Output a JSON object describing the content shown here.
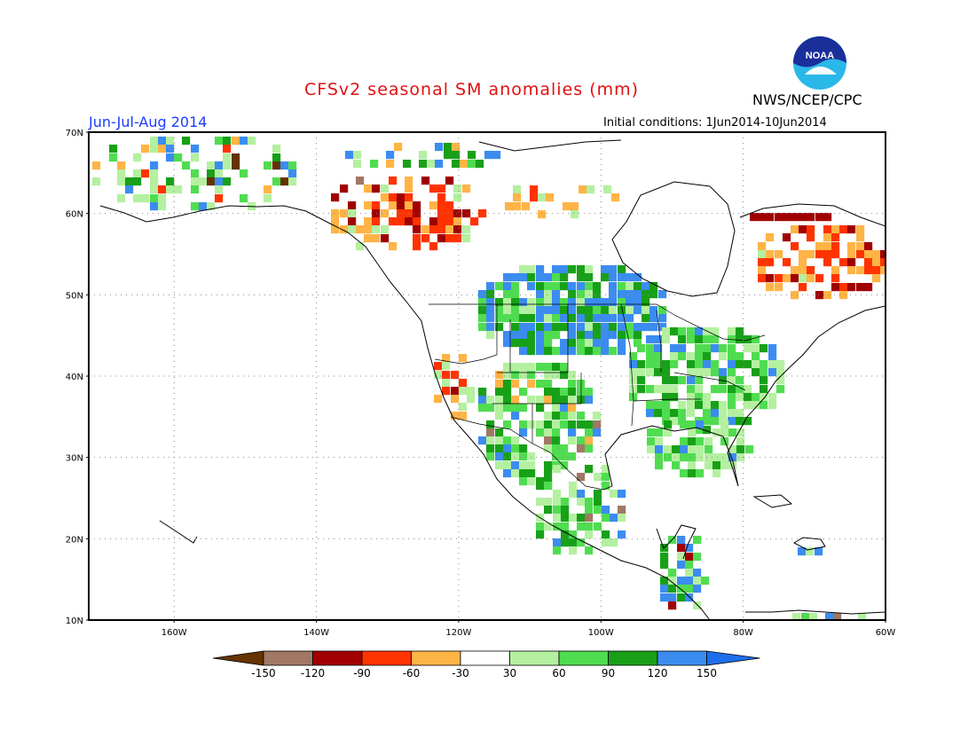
{
  "title": "CFSv2 seasonal SM anomalies (mm)",
  "agency": "NWS/NCEP/CPC",
  "logo_text": "NOAA",
  "season": "Jun-Jul-Aug 2014",
  "initial_conditions": "Initial conditions: 1Jun2014-10Jun2014",
  "map": {
    "lon_range": [
      -172,
      -60
    ],
    "lat_range": [
      10,
      70
    ],
    "lat_labels": [
      "70N",
      "60N",
      "50N",
      "40N",
      "30N",
      "20N",
      "10N"
    ],
    "lon_labels": [
      "160W",
      "140W",
      "120W",
      "100W",
      "80W",
      "60W"
    ],
    "gridlines": true
  },
  "legend": {
    "labels": [
      "-150",
      "-120",
      "-90",
      "-60",
      "-30",
      "30",
      "60",
      "90",
      "120",
      "150"
    ],
    "colors": [
      "#663300",
      "#a07864",
      "#a00000",
      "#ff3300",
      "#ffb446",
      "#ffffff",
      "#b4f0a0",
      "#50dc50",
      "#18a018",
      "#3c8cf0",
      "#1e6eeb"
    ]
  },
  "colors": {
    "title": "#e01010",
    "season": "#1a3cff",
    "logo_blue": "#1a2f9a",
    "logo_cyan": "#2ab8e8"
  }
}
